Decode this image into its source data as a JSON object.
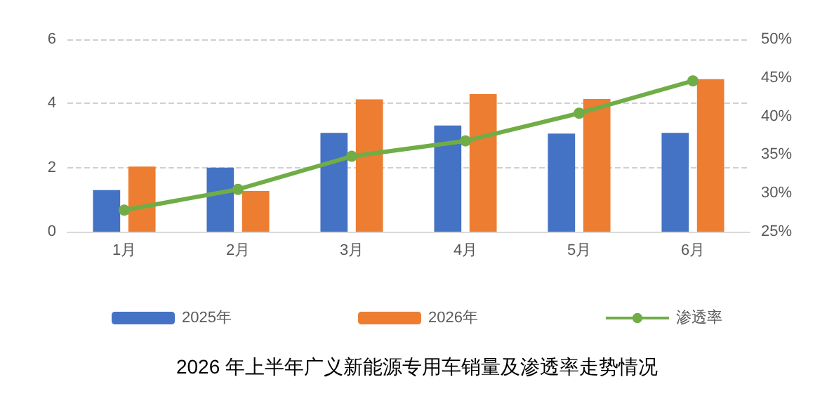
{
  "chart_data": {
    "type": "bar",
    "title": "2026 年上半年广义新能源专用车销量及渗透率走势情况",
    "categories": [
      "1月",
      "2月",
      "3月",
      "4月",
      "5月",
      "6月"
    ],
    "series": [
      {
        "name": "2025年",
        "color": "#4472c4",
        "values": [
          1.3,
          2.0,
          3.08,
          3.31,
          3.06,
          3.08
        ]
      },
      {
        "name": "2026年",
        "color": "#ed7d31",
        "values": [
          2.03,
          1.27,
          4.13,
          4.29,
          4.14,
          4.76
        ]
      },
      {
        "name": "渗透率",
        "type": "line",
        "axis": "y2",
        "color": "#70ad47",
        "values": [
          27.8,
          30.5,
          34.8,
          36.8,
          40.4,
          44.6
        ]
      }
    ],
    "ylim": [
      0,
      6
    ],
    "yticks": [
      0,
      2,
      4,
      6
    ],
    "y2lim": [
      25,
      50
    ],
    "y2ticks": [
      {
        "value": 25,
        "label": "25%"
      },
      {
        "value": 30,
        "label": "30%"
      },
      {
        "value": 35,
        "label": "35%"
      },
      {
        "value": 40,
        "label": "40%"
      },
      {
        "value": 45,
        "label": "45%"
      },
      {
        "value": 50,
        "label": "50%"
      }
    ],
    "grid": "y",
    "legend": "bottom",
    "marker": "circle",
    "line_style": "solid"
  }
}
